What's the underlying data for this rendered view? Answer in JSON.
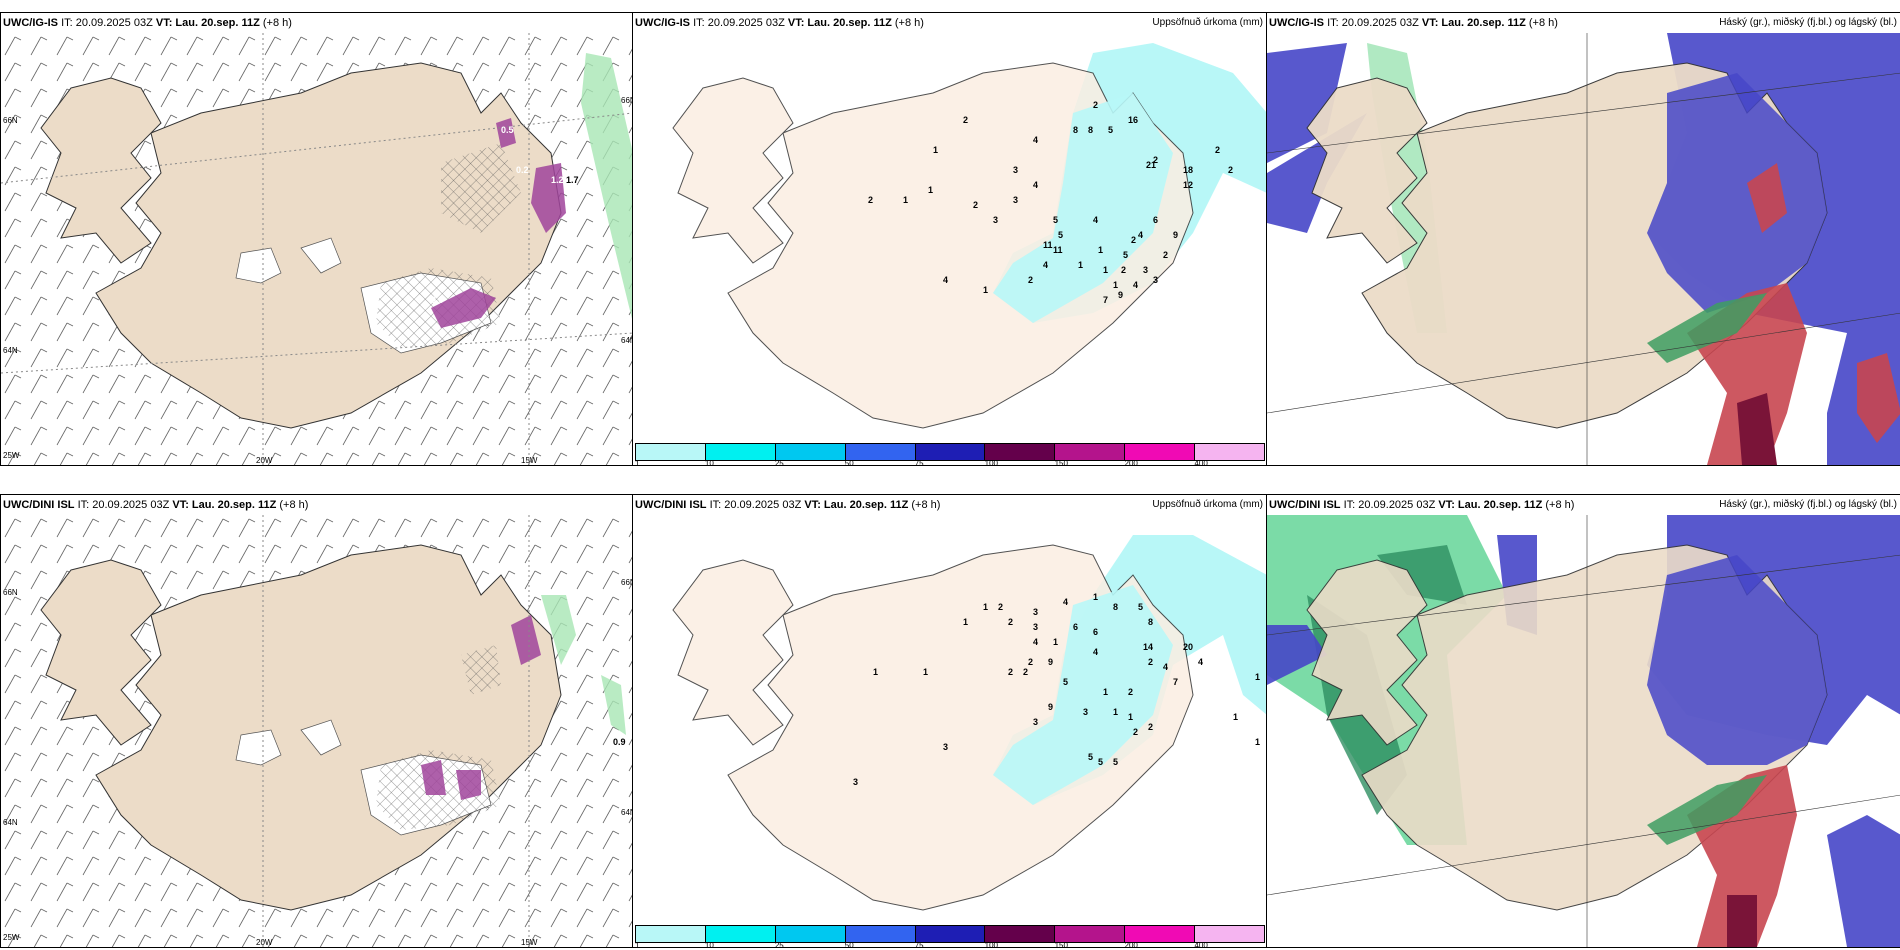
{
  "panels": {
    "top_left": {
      "model": "UWC/IG-IS",
      "it": "IT: 20.09.2025 03Z",
      "vt_label": "VT:",
      "vt_value": "Lau. 20.sep. 11Z",
      "lead": "(+8 h)"
    },
    "top_mid": {
      "model": "UWC/IG-IS",
      "it": "IT: 20.09.2025 03Z",
      "vt_label": "VT:",
      "vt_value": "Lau. 20.sep. 11Z",
      "lead": "(+8 h)",
      "right_title": "Uppsöfnuð úrkoma (mm)"
    },
    "top_right": {
      "model": "UWC/IG-IS",
      "it": "IT: 20.09.2025 03Z",
      "vt_label": "VT:",
      "vt_value": "Lau. 20.sep. 11Z",
      "lead": "(+8 h)",
      "right_title": "Háský (gr.), miðský (fj.bl.) og lágský (bl.)"
    },
    "bottom_left": {
      "model": "UWC/DINI ISL",
      "it": "IT: 20.09.2025 03Z",
      "vt_label": "VT:",
      "vt_value": "Lau. 20.sep. 11Z",
      "lead": "(+8 h)"
    },
    "bottom_mid": {
      "model": "UWC/DINI ISL",
      "it": "IT: 20.09.2025 03Z",
      "vt_label": "VT:",
      "vt_value": "Lau. 20.sep. 11Z",
      "lead": "(+8 h)",
      "right_title": "Uppsöfnuð úrkoma (mm)"
    },
    "bottom_right": {
      "model": "UWC/DINI ISL",
      "it": "IT: 20.09.2025 03Z",
      "vt_label": "VT:",
      "vt_value": "Lau. 20.sep. 11Z",
      "lead": "(+8 h)",
      "right_title": "Háský (gr.), miðský (fj.bl.) og lágský (bl.)"
    }
  },
  "axes": {
    "lon_20w": "20W",
    "lon_15w": "15W",
    "lon_25w": "25W",
    "lat_65n": "65N",
    "lat_64n": "64N",
    "lat_66n": "66N"
  },
  "precip_colorbar": {
    "labels": [
      "1",
      "10",
      "25",
      "50",
      "75",
      "100",
      "150",
      "200",
      "400"
    ],
    "colors": [
      "#b8f7f7",
      "#00f0f0",
      "#00c8f0",
      "#3264f0",
      "#1e1eb4",
      "#64004b",
      "#b4148c",
      "#f00ab4",
      "#f5b4f0"
    ]
  },
  "wind_labels_top": [
    "0.5",
    "0.2",
    "1.2",
    "0.9",
    "1.7"
  ],
  "wind_labels_bottom": [
    "0.9"
  ],
  "precip_top_values": [
    "2",
    "1",
    "3",
    "4",
    "8",
    "8",
    "5",
    "16",
    "2",
    "1",
    "2",
    "2",
    "4",
    "5",
    "1",
    "2",
    "21",
    "18",
    "12",
    "2",
    "3",
    "3",
    "2",
    "11",
    "1",
    "1",
    "1",
    "5",
    "4",
    "9",
    "11",
    "4",
    "4",
    "1",
    "5",
    "4",
    "1",
    "6",
    "2",
    "2",
    "4",
    "2",
    "7",
    "9",
    "3",
    "3",
    "2"
  ],
  "precip_bottom_values": [
    "1",
    "2",
    "1",
    "2",
    "3",
    "4",
    "1",
    "8",
    "5",
    "8",
    "1",
    "1",
    "3",
    "2",
    "2",
    "1",
    "4",
    "2",
    "6",
    "6",
    "4",
    "14",
    "20",
    "4",
    "2",
    "9",
    "7",
    "2",
    "1",
    "5",
    "9",
    "5",
    "4",
    "3",
    "3",
    "3",
    "1",
    "1",
    "1",
    "2",
    "2",
    "3",
    "5",
    "5",
    "1",
    "1"
  ],
  "colors": {
    "land": "#ecdcc8",
    "land_light": "#fbeee2",
    "snow": "#ffffff",
    "precip_light": "#b8f7f7",
    "green_cloud": "#6fd69a",
    "blue_cloud": "#4646c8",
    "purple": "#a0449b",
    "red": "#d0505a",
    "grid": "#888888"
  }
}
